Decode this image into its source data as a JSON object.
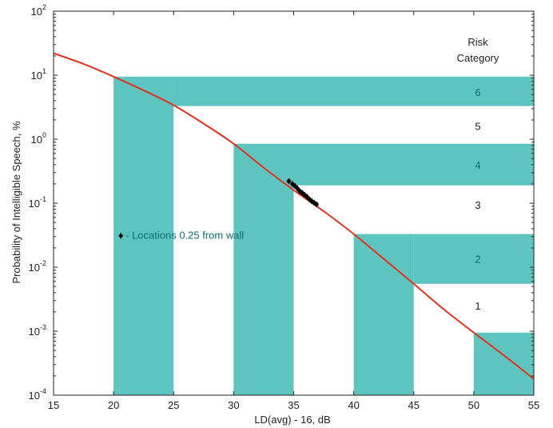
{
  "chart_data": {
    "type": "line",
    "title": "",
    "xlabel": "LD(avg) - 16, dB",
    "ylabel": "Probability of Intelligible Speech, %",
    "xlim": [
      15,
      55
    ],
    "ylim": [
      0.0001,
      100
    ],
    "yscale": "log",
    "grid": false,
    "x_ticks": [
      "15",
      "20",
      "25",
      "30",
      "35",
      "40",
      "45",
      "50",
      "55"
    ],
    "y_ticks": [
      {
        "base": "10",
        "exp": "-4"
      },
      {
        "base": "10",
        "exp": "-3"
      },
      {
        "base": "10",
        "exp": "-2"
      },
      {
        "base": "10",
        "exp": "-1"
      },
      {
        "base": "10",
        "exp": "0"
      },
      {
        "base": "10",
        "exp": "1"
      },
      {
        "base": "10",
        "exp": "2"
      }
    ],
    "curve": {
      "color": "#e0321e",
      "x": [
        15,
        17.5,
        20,
        22.5,
        25,
        27.5,
        30,
        32.5,
        35,
        37.5,
        40,
        42.5,
        45,
        47.5,
        50,
        52.5,
        55
      ],
      "y": [
        22,
        15,
        9.5,
        5.8,
        3.4,
        1.75,
        0.85,
        0.36,
        0.16,
        0.075,
        0.033,
        0.0135,
        0.0055,
        0.0022,
        0.00095,
        0.00042,
        0.00018
      ]
    },
    "risk_header": [
      "Risk",
      "Category"
    ],
    "risk_categories": [
      {
        "label": "6",
        "y": 5.5,
        "teal": true
      },
      {
        "label": "5",
        "y": 1.6,
        "teal": false
      },
      {
        "label": "4",
        "y": 0.4,
        "teal": true
      },
      {
        "label": "3",
        "y": 0.095,
        "teal": false
      },
      {
        "label": "2",
        "y": 0.0135,
        "teal": true
      },
      {
        "label": "1",
        "y": 0.0025,
        "teal": false
      }
    ],
    "bands": [
      {
        "x0": 20,
        "x1": 25,
        "y0": 0.0001,
        "y1": 9.5
      },
      {
        "x0": 25,
        "x1": 55,
        "y0": 3.3,
        "y1": 9.5
      },
      {
        "x0": 30,
        "x1": 35,
        "y0": 0.0001,
        "y1": 0.85
      },
      {
        "x0": 35,
        "x1": 55,
        "y0": 0.19,
        "y1": 0.85
      },
      {
        "x0": 40,
        "x1": 45,
        "y0": 0.0001,
        "y1": 0.033
      },
      {
        "x0": 45,
        "x1": 55,
        "y0": 0.0055,
        "y1": 0.033
      },
      {
        "x0": 50,
        "x1": 55,
        "y0": 0.0001,
        "y1": 0.00095
      }
    ],
    "band_color": "#5ec4c0",
    "band_text_color": "#0e6e70",
    "markers": {
      "symbol": "♦",
      "x": [
        34.6,
        34.9,
        35.1,
        35.3,
        35.5,
        35.7,
        35.9,
        36.1,
        36.3,
        36.5,
        36.7,
        36.9
      ],
      "y": [
        0.22,
        0.2,
        0.185,
        0.17,
        0.155,
        0.145,
        0.135,
        0.125,
        0.115,
        0.108,
        0.102,
        0.096
      ]
    },
    "legend": {
      "symbol": "♦",
      "text": " - Locations 0.25 from wall",
      "x": 20.6,
      "y": 0.032,
      "text_color": "#0e6e70"
    }
  }
}
